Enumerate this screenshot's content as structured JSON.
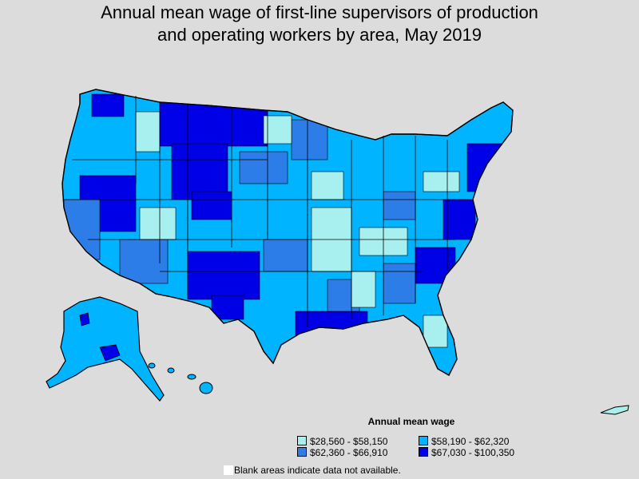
{
  "title": {
    "line1": "Annual mean wage of first-line supervisors of production",
    "line2": "and operating workers by area, May 2019"
  },
  "legend": {
    "title": "Annual mean wage",
    "items": [
      {
        "label": "$28,560 - $58,150",
        "color": "#a8f0f0"
      },
      {
        "label": "$58,190 - $62,320",
        "color": "#00b4ff"
      },
      {
        "label": "$62,360 - $66,910",
        "color": "#2c7de8"
      },
      {
        "label": "$67,030 - $100,350",
        "color": "#0000e6"
      }
    ],
    "blank_note": "Blank areas indicate data not available.",
    "blank_color": "#ffffff"
  },
  "map": {
    "background": "#dcdcdc",
    "border_color": "#000000",
    "regions": [
      "contiguous-us",
      "alaska",
      "hawaii",
      "puerto-rico"
    ]
  }
}
